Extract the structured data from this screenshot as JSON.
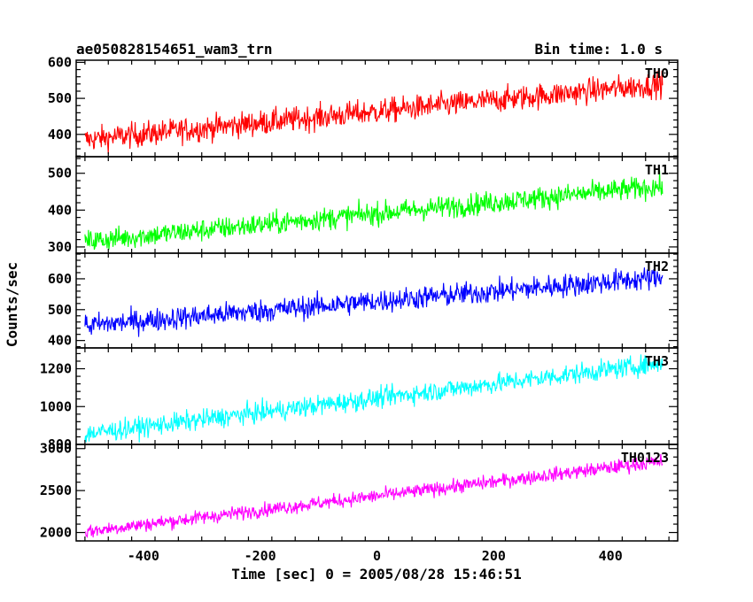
{
  "header": {
    "title": "ae050828154651_wam3_trn",
    "bin_time": "Bin time: 1.0 s"
  },
  "chart_data": {
    "type": "line",
    "xlabel": "Time [sec] 0 = 2005/08/28 15:46:51",
    "ylabel": "Counts/sec",
    "xlim": [
      -515,
      515
    ],
    "x_ticks": [
      -400,
      -200,
      0,
      200,
      400
    ],
    "x_range_data": [
      -500,
      489
    ],
    "panels": [
      {
        "name": "TH0",
        "color": "#ff0000",
        "ylim": [
          338,
          606
        ],
        "y_ticks": [
          400,
          500,
          600
        ],
        "trend_start": 385,
        "trend_end": 540,
        "noise": 25
      },
      {
        "name": "TH1",
        "color": "#00ff00",
        "ylim": [
          283,
          545
        ],
        "y_ticks": [
          300,
          400,
          500
        ],
        "trend_start": 315,
        "trend_end": 465,
        "noise": 22
      },
      {
        "name": "TH2",
        "color": "#0000ff",
        "ylim": [
          376,
          683
        ],
        "y_ticks": [
          400,
          500,
          600
        ],
        "trend_start": 448,
        "trend_end": 605,
        "noise": 27
      },
      {
        "name": "TH3",
        "color": "#00ffff",
        "ylim": [
          800,
          1310
        ],
        "y_ticks": [
          800,
          1000,
          1200
        ],
        "trend_start": 855,
        "trend_end": 1230,
        "noise": 38
      },
      {
        "name": "TH0123",
        "color": "#ff00ff",
        "ylim": [
          1900,
          3050
        ],
        "y_ticks": [
          2000,
          2500,
          3000
        ],
        "trend_start": 2010,
        "trend_end": 2850,
        "noise": 60
      }
    ]
  }
}
